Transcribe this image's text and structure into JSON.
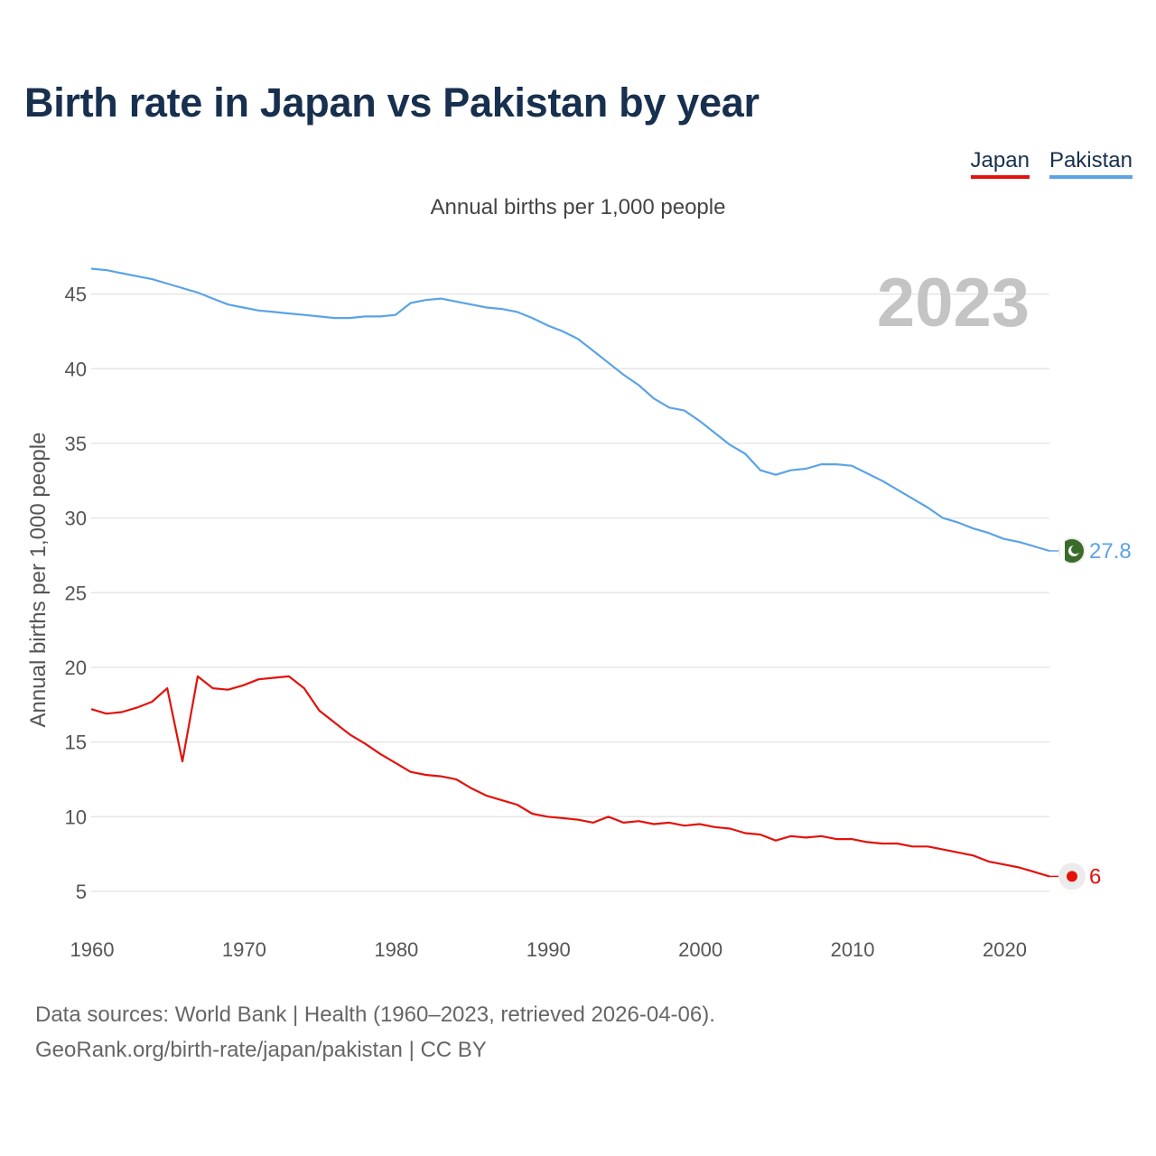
{
  "title": "Birth rate in Japan vs Pakistan by year",
  "legend": {
    "japan": "Japan",
    "pakistan": "Pakistan"
  },
  "footer": {
    "line1": "Data sources: World Bank | Health (1960–2023, retrieved 2026-04-06).",
    "line2": "GeoRank.org/birth-rate/japan/pakistan | CC BY"
  },
  "colors": {
    "japan": "#e3120b",
    "pakistan": "#5ba3e6",
    "grid": "#e6e6e6",
    "year_watermark": "#c4c4c4",
    "pakistan_flag": "#3b6b2a"
  },
  "chart_data": {
    "type": "line",
    "title": "Birth rate in Japan vs Pakistan by year",
    "subtitle": "Annual births per 1,000 people",
    "xlabel": "",
    "ylabel": "Annual births per 1,000 people",
    "year_label": "2023",
    "xlim": [
      1960,
      2023
    ],
    "ylim": [
      3,
      48
    ],
    "x_ticks": [
      1960,
      1970,
      1980,
      1990,
      2000,
      2010,
      2020
    ],
    "y_ticks": [
      5,
      10,
      15,
      20,
      25,
      30,
      35,
      40,
      45
    ],
    "grid": true,
    "legend_position": "top-right",
    "x": [
      1960,
      1961,
      1962,
      1963,
      1964,
      1965,
      1966,
      1967,
      1968,
      1969,
      1970,
      1971,
      1972,
      1973,
      1974,
      1975,
      1976,
      1977,
      1978,
      1979,
      1980,
      1981,
      1982,
      1983,
      1984,
      1985,
      1986,
      1987,
      1988,
      1989,
      1990,
      1991,
      1992,
      1993,
      1994,
      1995,
      1996,
      1997,
      1998,
      1999,
      2000,
      2001,
      2002,
      2003,
      2004,
      2005,
      2006,
      2007,
      2008,
      2009,
      2010,
      2011,
      2012,
      2013,
      2014,
      2015,
      2016,
      2017,
      2018,
      2019,
      2020,
      2021,
      2022,
      2023
    ],
    "series": [
      {
        "name": "Japan",
        "end_label": "6",
        "values": [
          17.2,
          16.9,
          17.0,
          17.3,
          17.7,
          18.6,
          13.7,
          19.4,
          18.6,
          18.5,
          18.8,
          19.2,
          19.3,
          19.4,
          18.6,
          17.1,
          16.3,
          15.5,
          14.9,
          14.2,
          13.6,
          13.0,
          12.8,
          12.7,
          12.5,
          11.9,
          11.4,
          11.1,
          10.8,
          10.2,
          10.0,
          9.9,
          9.8,
          9.6,
          10.0,
          9.6,
          9.7,
          9.5,
          9.6,
          9.4,
          9.5,
          9.3,
          9.2,
          8.9,
          8.8,
          8.4,
          8.7,
          8.6,
          8.7,
          8.5,
          8.5,
          8.3,
          8.2,
          8.2,
          8.0,
          8.0,
          7.8,
          7.6,
          7.4,
          7.0,
          6.8,
          6.6,
          6.3,
          6.0
        ]
      },
      {
        "name": "Pakistan",
        "end_label": "27.8",
        "values": [
          46.7,
          46.6,
          46.4,
          46.2,
          46.0,
          45.7,
          45.4,
          45.1,
          44.7,
          44.3,
          44.1,
          43.9,
          43.8,
          43.7,
          43.6,
          43.5,
          43.4,
          43.4,
          43.5,
          43.5,
          43.6,
          44.4,
          44.6,
          44.7,
          44.5,
          44.3,
          44.1,
          44.0,
          43.8,
          43.4,
          42.9,
          42.5,
          42.0,
          41.2,
          40.4,
          39.6,
          38.9,
          38.0,
          37.4,
          37.2,
          36.5,
          35.7,
          34.9,
          34.3,
          33.2,
          32.9,
          33.2,
          33.3,
          33.6,
          33.6,
          33.5,
          33.0,
          32.5,
          31.9,
          31.3,
          30.7,
          30.0,
          29.7,
          29.3,
          29.0,
          28.6,
          28.4,
          28.1,
          27.8
        ]
      }
    ]
  }
}
